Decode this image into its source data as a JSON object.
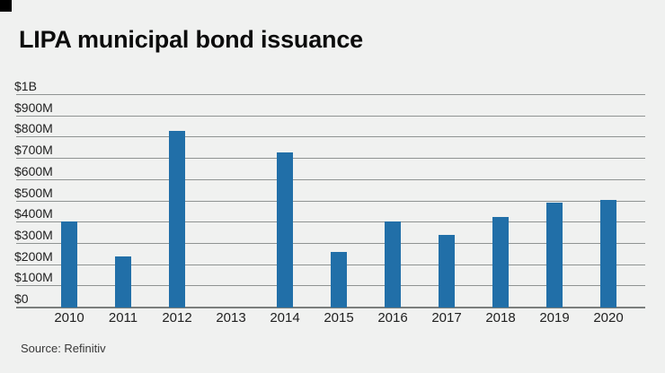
{
  "header": {
    "title": "LIPA municipal bond issuance"
  },
  "footer": {
    "source": "Source: Refinitiv"
  },
  "colors": {
    "background": "#f0f1f0",
    "brand_square": "#000000",
    "bar": "#216fa8",
    "gridline": "#8f9392",
    "axis": "#7a7e7c",
    "title_text": "#0c0c0c",
    "label_text": "#1f1f1f",
    "source_text": "#383838"
  },
  "chart_data": {
    "type": "bar",
    "title": "LIPA municipal bond issuance",
    "categories": [
      "2010",
      "2011",
      "2012",
      "2013",
      "2014",
      "2015",
      "2016",
      "2017",
      "2018",
      "2019",
      "2020"
    ],
    "values": [
      405,
      240,
      830,
      0,
      730,
      260,
      405,
      340,
      425,
      495,
      505
    ],
    "values_unit": "USD millions",
    "xlabel": "",
    "ylabel": "",
    "ylim": [
      0,
      1000
    ],
    "grid": true,
    "legend": "none",
    "y_ticks": [
      {
        "value": 1000,
        "label": "$1B"
      },
      {
        "value": 900,
        "label": "$900M"
      },
      {
        "value": 800,
        "label": "$800M"
      },
      {
        "value": 700,
        "label": "$700M"
      },
      {
        "value": 600,
        "label": "$600M"
      },
      {
        "value": 500,
        "label": "$500M"
      },
      {
        "value": 400,
        "label": "$400M"
      },
      {
        "value": 300,
        "label": "$300M"
      },
      {
        "value": 200,
        "label": "$200M"
      },
      {
        "value": 100,
        "label": "$100M"
      },
      {
        "value": 0,
        "label": "$0"
      }
    ],
    "source": "Source: Refinitiv"
  }
}
